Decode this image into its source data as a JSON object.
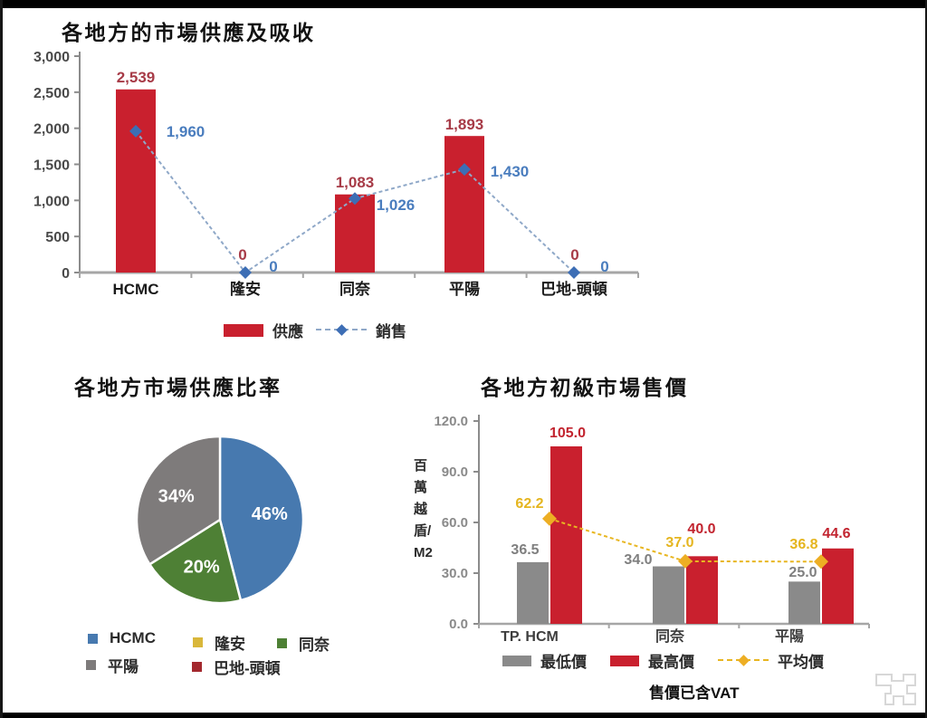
{
  "page": {
    "background": "#ffffff",
    "frame_color": "#000000"
  },
  "chart_data": [
    {
      "type": "bar",
      "title": "各地方的市場供應及吸收",
      "categories": [
        "HCMC",
        "隆安",
        "同奈",
        "平陽",
        "巴地-頭頓"
      ],
      "ylim": [
        0,
        3000
      ],
      "grid": false,
      "legend_position": "bottom",
      "yticks": [
        "0",
        "500",
        "1,000",
        "1,500",
        "2,000",
        "2,500",
        "3,000"
      ],
      "ytick_values": [
        0,
        500,
        1000,
        1500,
        2000,
        2500,
        3000
      ],
      "series": [
        {
          "name": "供應",
          "type": "bar",
          "color": "#C9202E",
          "label_color": "#A73B47",
          "values": [
            2539,
            0,
            1083,
            1893,
            0
          ],
          "labels": [
            "2,539",
            "0",
            "1,083",
            "1,893",
            "0"
          ]
        },
        {
          "name": "銷售",
          "type": "line",
          "color": "#8FA8C8",
          "marker_color": "#3D6EB5",
          "label_color": "#4A7DBE",
          "values": [
            1960,
            0,
            1026,
            1430,
            0
          ],
          "labels": [
            "1,960",
            "0",
            "1,026",
            "1,430",
            "0"
          ]
        }
      ]
    },
    {
      "type": "pie",
      "title": "各地方市場供應比率",
      "legend_position": "bottom",
      "slices": [
        {
          "label": "HCMC",
          "pct": 46,
          "color": "#4779AF",
          "text": "46%"
        },
        {
          "label": "隆安",
          "pct": 0,
          "color": "#D9B73A",
          "text": ""
        },
        {
          "label": "同奈",
          "pct": 20,
          "color": "#4E8035",
          "text": "20%"
        },
        {
          "label": "平陽",
          "pct": 34,
          "color": "#7E7B7B",
          "text": "34%"
        },
        {
          "label": "巴地-頭頓",
          "pct": 0,
          "color": "#A3282E",
          "text": ""
        }
      ]
    },
    {
      "type": "bar",
      "title": "各地方初級市場售價",
      "ylabel": "百萬越盾/M2",
      "note": "售價已含VAT",
      "categories": [
        "TP. HCM",
        "同奈",
        "平陽"
      ],
      "ylim": [
        0,
        120
      ],
      "grid": false,
      "legend_position": "bottom",
      "yticks": [
        "0.0",
        "30.0",
        "60.0",
        "90.0",
        "120.0"
      ],
      "ytick_values": [
        0,
        30,
        60,
        90,
        120
      ],
      "series": [
        {
          "name": "最低價",
          "type": "bar",
          "color": "#8A8A8A",
          "label_color": "#7F7F7F",
          "values": [
            36.5,
            34.0,
            25.0
          ],
          "labels": [
            "36.5",
            "34.0",
            "25.0"
          ]
        },
        {
          "name": "最高價",
          "type": "bar",
          "color": "#C9202E",
          "label_color": "#C2242F",
          "values": [
            105.0,
            40.0,
            44.6
          ],
          "labels": [
            "105.0",
            "40.0",
            "44.6"
          ]
        },
        {
          "name": "平均價",
          "type": "line",
          "color": "#E8B621",
          "marker_color": "#EDAE24",
          "label_color": "#E5B51F",
          "values": [
            62.2,
            37.0,
            36.8
          ],
          "labels": [
            "62.2",
            "37.0",
            "36.8"
          ]
        }
      ]
    }
  ]
}
